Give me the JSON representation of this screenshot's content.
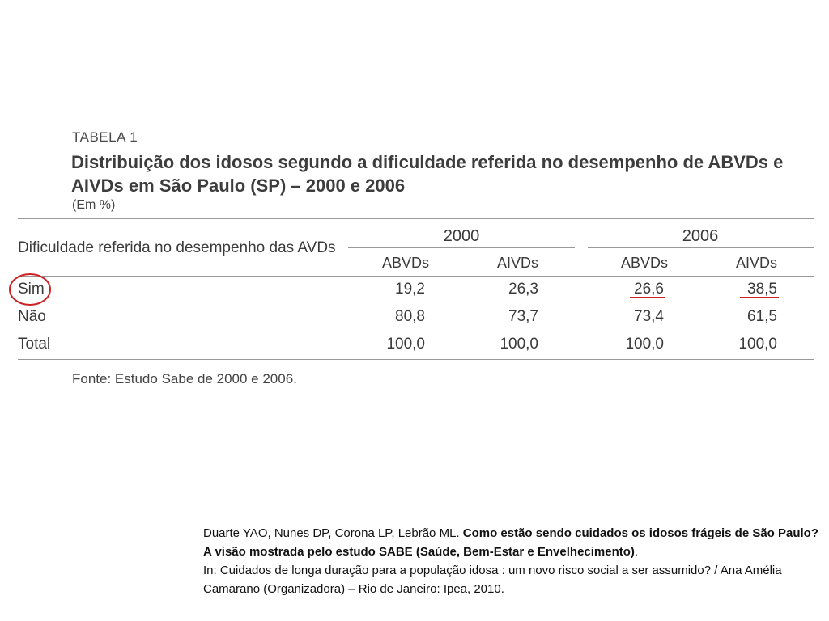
{
  "table": {
    "label": "TABELA 1",
    "title": "Distribuição dos idosos segundo a dificuldade referida no desempenho de ABVDs e AIVDs em São Paulo (SP) – 2000 e 2006",
    "unit": "(Em %)",
    "row_header": "Dificuldade referida no desempenho das AVDs",
    "years": [
      "2000",
      "2006"
    ],
    "columns": [
      "ABVDs",
      "AIVDs",
      "ABVDs",
      "AIVDs"
    ],
    "rows": [
      {
        "label": "Sim",
        "values": [
          "19,2",
          "26,3",
          "26,6",
          "38,5"
        ]
      },
      {
        "label": "Não",
        "values": [
          "80,8",
          "73,7",
          "73,4",
          "61,5"
        ]
      },
      {
        "label": "Total",
        "values": [
          "100,0",
          "100,0",
          "100,0",
          "100,0"
        ]
      }
    ],
    "source": "Fonte: Estudo Sabe de 2000 e 2006."
  },
  "annotations": {
    "color": "#cc2222"
  },
  "reference": {
    "authors": "Duarte YAO, Nunes DP, Corona LP, Lebrão ML. ",
    "title_bold": "Como estão sendo cuidados os idosos frágeis de São Paulo? A visão mostrada pelo estudo SABE (Saúde, Bem-Estar e Envelhecimento)",
    "period": ".",
    "in_text": "In: Cuidados de longa duração para a população idosa : um novo risco social a ser assumido? / Ana Amélia Camarano (Organizadora) – Rio de Janeiro: Ipea, 2010."
  }
}
